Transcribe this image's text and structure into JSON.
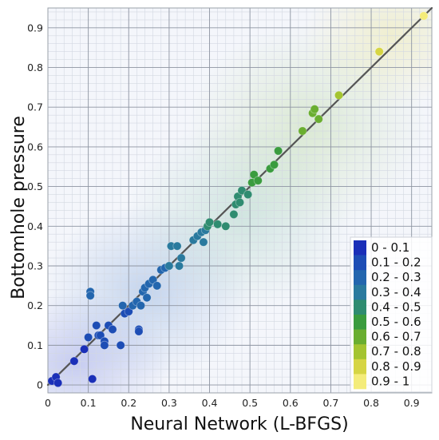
{
  "chart_data": {
    "type": "scatter",
    "xlabel": "Neural Network (L-BFGS)",
    "ylabel": "Bottomhole pressure",
    "xlim": [
      0,
      0.95
    ],
    "ylim": [
      -0.02,
      0.95
    ],
    "x_ticks": [
      0,
      0.1,
      0.2,
      0.3,
      0.4,
      0.5,
      0.6,
      0.7,
      0.8,
      0.9
    ],
    "y_ticks": [
      0,
      0.1,
      0.2,
      0.3,
      0.4,
      0.5,
      0.6,
      0.7,
      0.8,
      0.9
    ],
    "x_tick_labels": [
      "0",
      "0.1",
      "0.2",
      "0.3",
      "0.4",
      "0.5",
      "0.6",
      "0.7",
      "0.8",
      "0.9"
    ],
    "y_tick_labels": [
      "0",
      "0.1",
      "0.2",
      "0.3",
      "0.4",
      "0.5",
      "0.6",
      "0.7",
      "0.8",
      "0.9"
    ],
    "grid": true,
    "reference_line": {
      "from": [
        0,
        0
      ],
      "to": [
        0.95,
        0.95
      ],
      "color": "#555555"
    },
    "legend": {
      "placement": "bottom-right",
      "entries": [
        {
          "label": "0 - 0.1",
          "color": "#1a2fb8"
        },
        {
          "label": "0.1 - 0.2",
          "color": "#1d4db5"
        },
        {
          "label": "0.2 - 0.3",
          "color": "#2366ae"
        },
        {
          "label": "0.3 - 0.4",
          "color": "#2a7a9e"
        },
        {
          "label": "0.4 - 0.5",
          "color": "#2f8c70"
        },
        {
          "label": "0.5 - 0.6",
          "color": "#3a9c3e"
        },
        {
          "label": "0.6 - 0.7",
          "color": "#6aae30"
        },
        {
          "label": "0.7 - 0.8",
          "color": "#a4c431"
        },
        {
          "label": "0.8 - 0.9",
          "color": "#d6d544"
        },
        {
          "label": "0.9 - 1",
          "color": "#f4ec7a"
        }
      ]
    },
    "points": [
      [
        0.01,
        0.01
      ],
      [
        0.02,
        0.02
      ],
      [
        0.025,
        0.005
      ],
      [
        0.065,
        0.06
      ],
      [
        0.09,
        0.09
      ],
      [
        0.1,
        0.12
      ],
      [
        0.11,
        0.015
      ],
      [
        0.105,
        0.235
      ],
      [
        0.105,
        0.225
      ],
      [
        0.12,
        0.15
      ],
      [
        0.125,
        0.125
      ],
      [
        0.13,
        0.125
      ],
      [
        0.14,
        0.11
      ],
      [
        0.14,
        0.1
      ],
      [
        0.15,
        0.15
      ],
      [
        0.16,
        0.14
      ],
      [
        0.18,
        0.1
      ],
      [
        0.185,
        0.2
      ],
      [
        0.19,
        0.18
      ],
      [
        0.2,
        0.185
      ],
      [
        0.21,
        0.2
      ],
      [
        0.22,
        0.21
      ],
      [
        0.225,
        0.14
      ],
      [
        0.225,
        0.135
      ],
      [
        0.23,
        0.2
      ],
      [
        0.235,
        0.235
      ],
      [
        0.24,
        0.245
      ],
      [
        0.245,
        0.22
      ],
      [
        0.25,
        0.255
      ],
      [
        0.26,
        0.265
      ],
      [
        0.27,
        0.25
      ],
      [
        0.28,
        0.29
      ],
      [
        0.29,
        0.295
      ],
      [
        0.3,
        0.3
      ],
      [
        0.305,
        0.35
      ],
      [
        0.32,
        0.35
      ],
      [
        0.325,
        0.3
      ],
      [
        0.33,
        0.32
      ],
      [
        0.36,
        0.365
      ],
      [
        0.37,
        0.375
      ],
      [
        0.38,
        0.385
      ],
      [
        0.385,
        0.36
      ],
      [
        0.39,
        0.39
      ],
      [
        0.395,
        0.4
      ],
      [
        0.4,
        0.41
      ],
      [
        0.42,
        0.405
      ],
      [
        0.44,
        0.4
      ],
      [
        0.46,
        0.43
      ],
      [
        0.465,
        0.455
      ],
      [
        0.47,
        0.475
      ],
      [
        0.475,
        0.46
      ],
      [
        0.48,
        0.49
      ],
      [
        0.495,
        0.48
      ],
      [
        0.505,
        0.51
      ],
      [
        0.51,
        0.53
      ],
      [
        0.52,
        0.515
      ],
      [
        0.55,
        0.545
      ],
      [
        0.56,
        0.555
      ],
      [
        0.57,
        0.59
      ],
      [
        0.63,
        0.64
      ],
      [
        0.655,
        0.685
      ],
      [
        0.66,
        0.695
      ],
      [
        0.67,
        0.67
      ],
      [
        0.72,
        0.73
      ],
      [
        0.82,
        0.84
      ],
      [
        0.93,
        0.93
      ]
    ]
  }
}
